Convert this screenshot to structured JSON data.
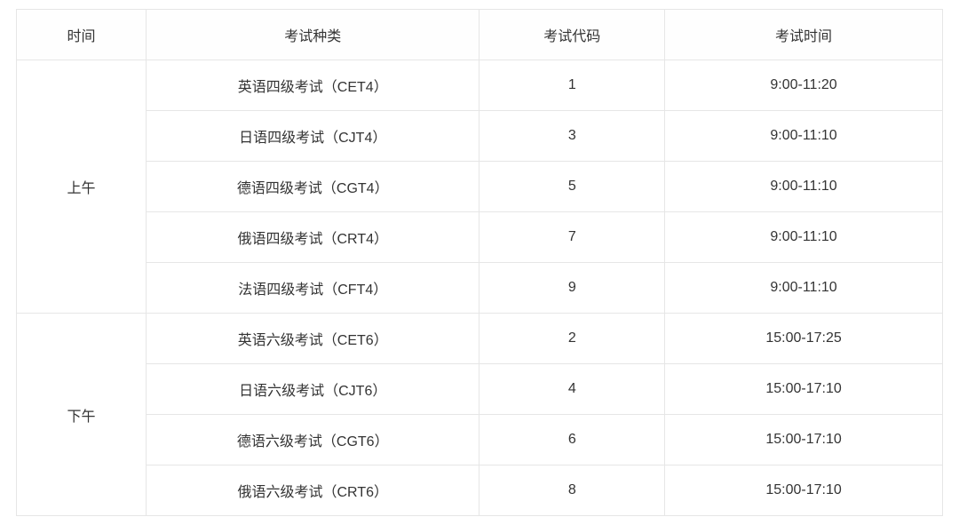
{
  "table": {
    "headers": {
      "time": "时间",
      "type": "考试种类",
      "code": "考试代码",
      "examTime": "考试时间"
    },
    "sessions": [
      {
        "label": "上午",
        "exams": [
          {
            "type": "英语四级考试（CET4）",
            "code": "1",
            "examTime": "9:00-11:20"
          },
          {
            "type": "日语四级考试（CJT4）",
            "code": "3",
            "examTime": "9:00-11:10"
          },
          {
            "type": "德语四级考试（CGT4）",
            "code": "5",
            "examTime": "9:00-11:10"
          },
          {
            "type": "俄语四级考试（CRT4）",
            "code": "7",
            "examTime": "9:00-11:10"
          },
          {
            "type": "法语四级考试（CFT4）",
            "code": "9",
            "examTime": "9:00-11:10"
          }
        ]
      },
      {
        "label": "下午",
        "exams": [
          {
            "type": "英语六级考试（CET6）",
            "code": "2",
            "examTime": "15:00-17:25"
          },
          {
            "type": "日语六级考试（CJT6）",
            "code": "4",
            "examTime": "15:00-17:10"
          },
          {
            "type": "德语六级考试（CGT6）",
            "code": "6",
            "examTime": "15:00-17:10"
          },
          {
            "type": "俄语六级考试（CRT6）",
            "code": "8",
            "examTime": "15:00-17:10"
          }
        ]
      }
    ],
    "style": {
      "border_color": "#e6e6e6",
      "text_color": "#333333",
      "background_color": "#ffffff",
      "font_size": 16,
      "cell_padding_vertical": 16,
      "cell_padding_horizontal": 8,
      "column_widths_percent": [
        14,
        36,
        20,
        30
      ]
    }
  }
}
